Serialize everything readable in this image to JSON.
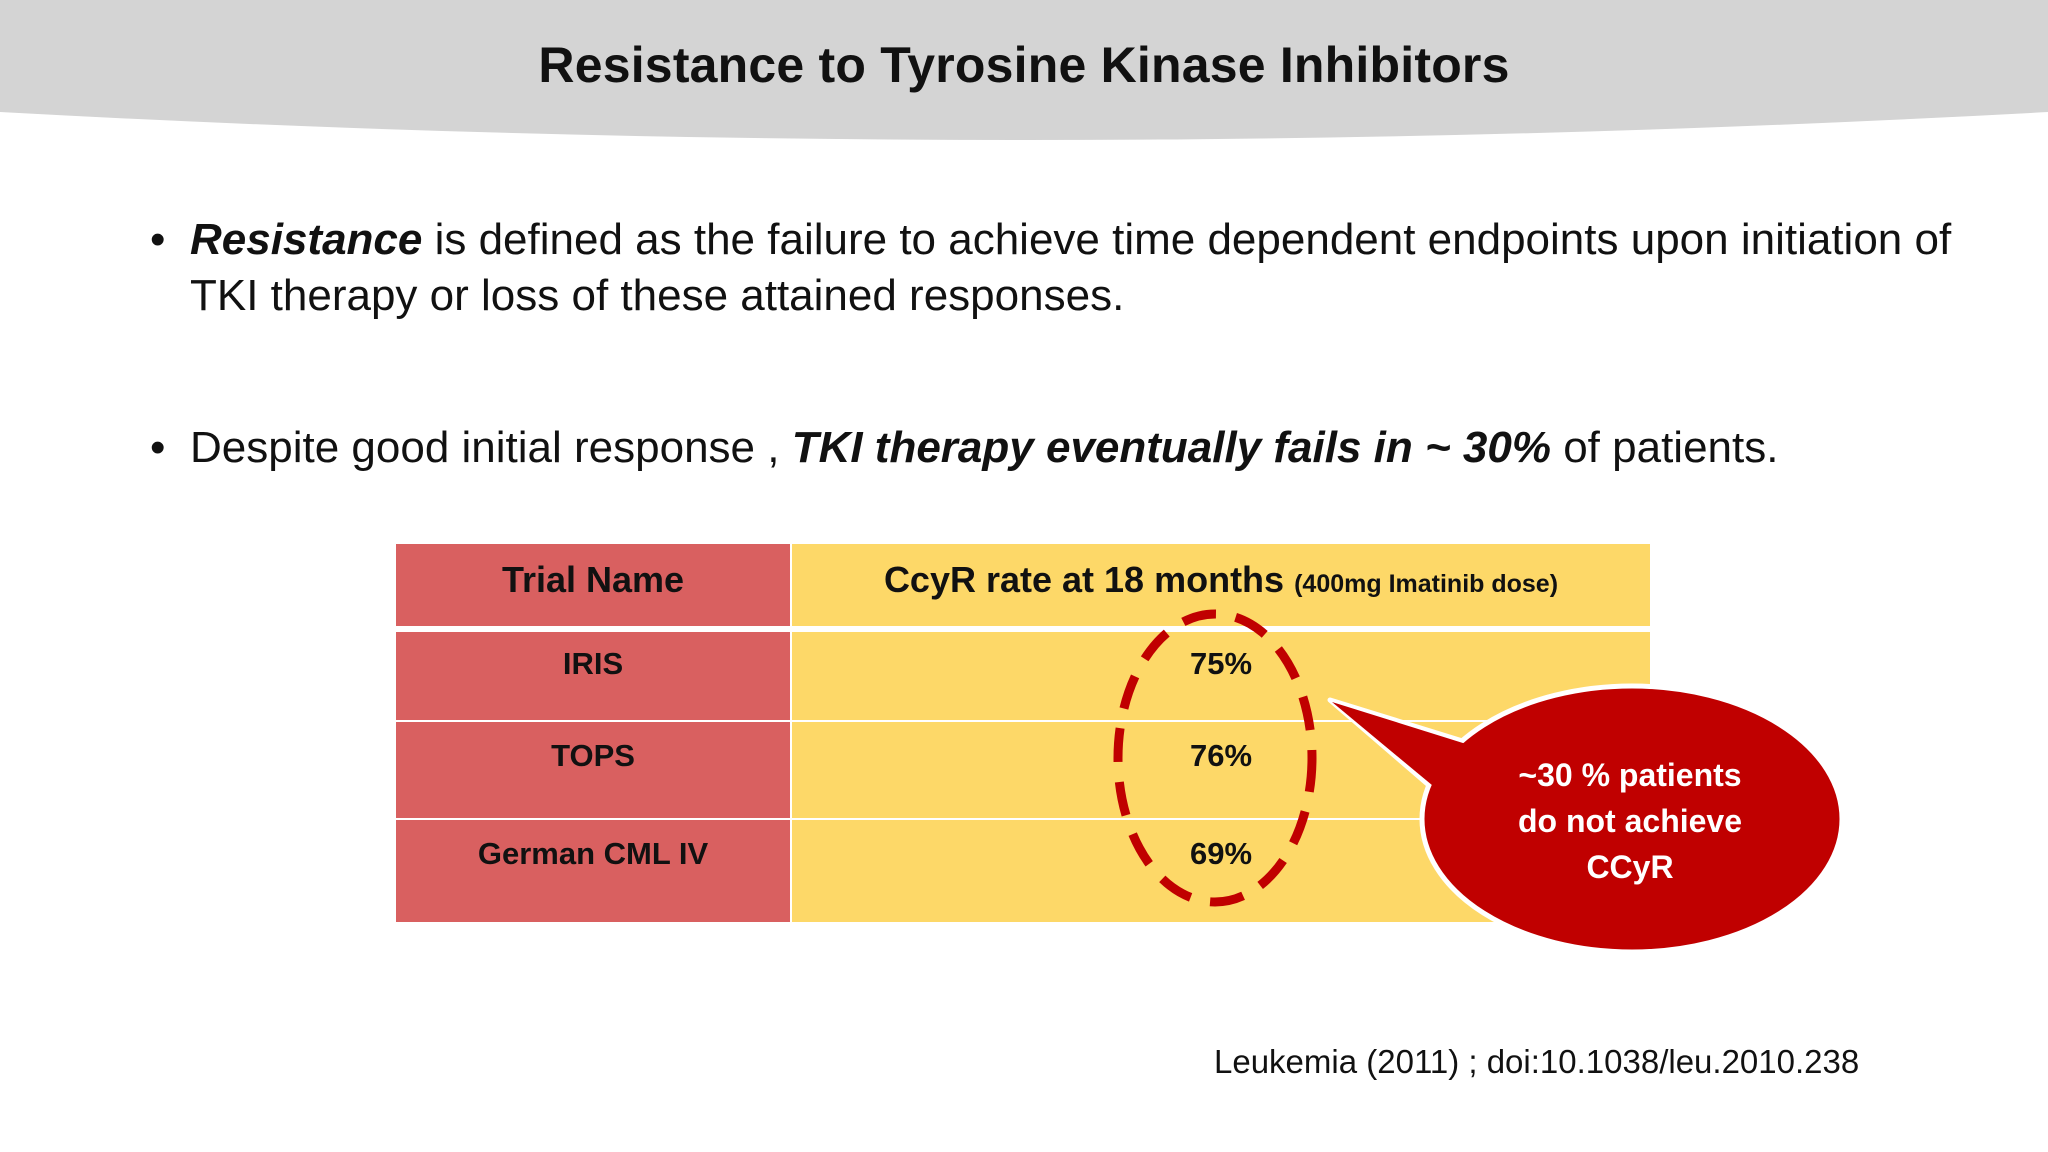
{
  "slide": {
    "title": "Resistance to Tyrosine Kinase Inhibitors",
    "bullets": [
      {
        "emphasis": "Resistance",
        "text": " is defined as the failure to achieve time dependent endpoints upon initiation of TKI therapy or loss of these attained responses."
      },
      {
        "before": "Despite good initial response , ",
        "emphasis": "TKI therapy eventually fails in ~ 30%",
        "after": " of patients."
      }
    ],
    "table": {
      "headers": {
        "trial": "Trial Name",
        "rate": "CcyR rate at 18 months",
        "rate_note": "(400mg Imatinib dose)"
      },
      "rows": [
        {
          "trial": "IRIS",
          "rate": "75%"
        },
        {
          "trial": "TOPS",
          "rate": "76%"
        },
        {
          "trial": "German CML IV",
          "rate": "69%"
        }
      ]
    },
    "callout": {
      "line1": "~30 % patients",
      "line2": "do not achieve",
      "line3": "CCyR"
    },
    "citation": "Leukemia (2011) ; doi:10.1038/leu.2010.238",
    "colors": {
      "header_band": "#d4d4d4",
      "trial_column": "#d96060",
      "rate_column": "#fdd868",
      "callout": "#c00000",
      "dashed_ellipse": "#c00000"
    }
  }
}
